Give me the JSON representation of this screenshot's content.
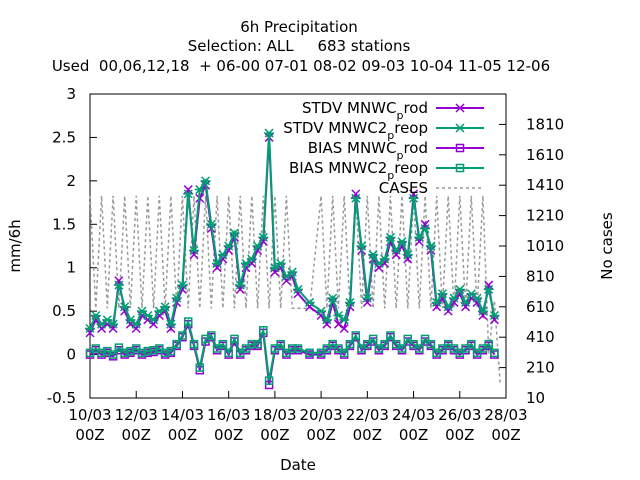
{
  "chart_data": {
    "type": "line",
    "title_lines": [
      "6h Precipitation",
      "Selection: ALL     683 stations",
      "Used  00,06,12,18  + 06-00 07-01 08-02 09-03 10-04 11-05 12-06"
    ],
    "xlabel": "Date",
    "ylabel": "mm/6h",
    "y2label": "No cases",
    "ylim": [
      -0.5,
      3
    ],
    "y2lim": [
      10,
      2010
    ],
    "yticks": [
      "-0.5",
      "0",
      "0.5",
      "1",
      "1.5",
      "2",
      "2.5",
      "3"
    ],
    "y2ticks": [
      "10",
      "210",
      "410",
      "610",
      "810",
      "1010",
      "1210",
      "1410",
      "1610",
      "1810"
    ],
    "xticks": [
      {
        "date": "10/03",
        "hour": "00Z"
      },
      {
        "date": "12/03",
        "hour": "00Z"
      },
      {
        "date": "14/03",
        "hour": "00Z"
      },
      {
        "date": "16/03",
        "hour": "00Z"
      },
      {
        "date": "18/03",
        "hour": "00Z"
      },
      {
        "date": "20/03",
        "hour": "00Z"
      },
      {
        "date": "22/03",
        "hour": "00Z"
      },
      {
        "date": "24/03",
        "hour": "00Z"
      },
      {
        "date": "26/03",
        "hour": "00Z"
      },
      {
        "date": "28/03",
        "hour": "00Z"
      }
    ],
    "x_unit": "days from 10/03 00Z",
    "xlim": [
      0,
      18
    ],
    "legend": [
      {
        "base": "STDV MNWC",
        "sub": "p",
        "rest": "rod",
        "color": "#9400d3",
        "marker": "x",
        "series": "stdv_mnwc_prod"
      },
      {
        "base": "STDV MNWC2",
        "sub": "p",
        "rest": "reop",
        "color": "#009e73",
        "marker": "star",
        "series": "stdv_mnwc2_preop"
      },
      {
        "base": "BIAS MNWC",
        "sub": "p",
        "rest": "rod",
        "color": "#9400d3",
        "marker": "square",
        "series": "bias_mnwc_prod"
      },
      {
        "base": "BIAS MNWC2",
        "sub": "p",
        "rest": "reop",
        "color": "#009e73",
        "marker": "square",
        "series": "bias_mnwc2_preop"
      },
      {
        "base": "CASES",
        "sub": "",
        "rest": "",
        "color": "#999999",
        "marker": "dash",
        "series": "cases"
      }
    ],
    "legend_position": "top-right",
    "series": {
      "stdv_mnwc_prod": {
        "x": [
          0,
          0.25,
          0.5,
          0.75,
          1,
          1.25,
          1.5,
          1.75,
          2,
          2.25,
          2.5,
          2.75,
          3,
          3.25,
          3.5,
          3.75,
          4,
          4.25,
          4.5,
          4.75,
          5,
          5.25,
          5.5,
          5.75,
          6,
          6.25,
          6.5,
          6.75,
          7,
          7.25,
          7.5,
          7.75,
          8,
          8.25,
          8.5,
          8.75,
          9,
          9.5,
          10,
          10.25,
          10.5,
          10.75,
          11,
          11.25,
          11.5,
          11.75,
          12,
          12.25,
          12.5,
          12.75,
          13,
          13.25,
          13.5,
          13.75,
          14,
          14.25,
          14.5,
          14.75,
          15,
          15.25,
          15.5,
          15.75,
          16,
          16.25,
          16.5,
          16.75,
          17,
          17.25,
          17.5
        ],
        "y": [
          0.25,
          0.4,
          0.3,
          0.35,
          0.3,
          0.85,
          0.5,
          0.35,
          0.3,
          0.45,
          0.4,
          0.35,
          0.45,
          0.5,
          0.3,
          0.6,
          0.75,
          1.9,
          1.15,
          1.8,
          1.95,
          1.45,
          1.0,
          1.1,
          1.2,
          1.35,
          0.75,
          1.0,
          1.05,
          1.2,
          1.3,
          2.5,
          0.95,
          1.0,
          0.85,
          0.9,
          0.7,
          0.55,
          0.45,
          0.35,
          0.6,
          0.35,
          0.3,
          0.55,
          1.85,
          1.2,
          0.6,
          1.1,
          1.0,
          1.05,
          1.3,
          1.15,
          1.25,
          1.1,
          1.85,
          1.3,
          1.5,
          1.2,
          0.55,
          0.65,
          0.5,
          0.6,
          0.7,
          0.55,
          0.65,
          0.6,
          0.45,
          0.8,
          0.4
        ]
      },
      "stdv_mnwc2_preop": {
        "x": [
          0,
          0.25,
          0.5,
          0.75,
          1,
          1.25,
          1.5,
          1.75,
          2,
          2.25,
          2.5,
          2.75,
          3,
          3.25,
          3.5,
          3.75,
          4,
          4.25,
          4.5,
          4.75,
          5,
          5.25,
          5.5,
          5.75,
          6,
          6.25,
          6.5,
          6.75,
          7,
          7.25,
          7.5,
          7.75,
          8,
          8.25,
          8.5,
          8.75,
          9,
          9.5,
          10,
          10.25,
          10.5,
          10.75,
          11,
          11.25,
          11.5,
          11.75,
          12,
          12.25,
          12.5,
          12.75,
          13,
          13.25,
          13.5,
          13.75,
          14,
          14.25,
          14.5,
          14.75,
          15,
          15.25,
          15.5,
          15.75,
          16,
          16.25,
          16.5,
          16.75,
          17,
          17.25,
          17.5
        ],
        "y": [
          0.3,
          0.45,
          0.35,
          0.4,
          0.35,
          0.8,
          0.55,
          0.4,
          0.35,
          0.5,
          0.45,
          0.4,
          0.5,
          0.55,
          0.35,
          0.65,
          0.8,
          1.85,
          1.2,
          1.9,
          2.0,
          1.5,
          1.05,
          1.15,
          1.25,
          1.4,
          0.8,
          1.05,
          1.1,
          1.25,
          1.35,
          2.55,
          1.0,
          1.05,
          0.9,
          0.95,
          0.75,
          0.6,
          0.5,
          0.4,
          0.65,
          0.45,
          0.4,
          0.6,
          1.8,
          1.25,
          0.65,
          1.15,
          1.05,
          1.1,
          1.35,
          1.2,
          1.3,
          1.15,
          1.8,
          1.35,
          1.45,
          1.25,
          0.6,
          0.7,
          0.55,
          0.65,
          0.75,
          0.6,
          0.7,
          0.65,
          0.5,
          0.75,
          0.45
        ]
      },
      "bias_mnwc_prod": {
        "x": [
          0,
          0.25,
          0.5,
          0.75,
          1,
          1.25,
          1.5,
          1.75,
          2,
          2.25,
          2.5,
          2.75,
          3,
          3.25,
          3.5,
          3.75,
          4,
          4.25,
          4.5,
          4.75,
          5,
          5.25,
          5.5,
          5.75,
          6,
          6.25,
          6.5,
          6.75,
          7,
          7.25,
          7.5,
          7.75,
          8,
          8.25,
          8.5,
          8.75,
          9,
          9.5,
          10,
          10.25,
          10.5,
          10.75,
          11,
          11.25,
          11.5,
          11.75,
          12,
          12.25,
          12.5,
          12.75,
          13,
          13.25,
          13.5,
          13.75,
          14,
          14.25,
          14.5,
          14.75,
          15,
          15.25,
          15.5,
          15.75,
          16,
          16.25,
          16.5,
          16.75,
          17,
          17.25,
          17.5
        ],
        "y": [
          0.0,
          0.05,
          0.0,
          0.02,
          -0.02,
          0.05,
          0.0,
          0.02,
          0.05,
          0.0,
          0.02,
          0.03,
          0.05,
          0.0,
          0.02,
          0.1,
          0.2,
          0.35,
          0.1,
          -0.18,
          0.15,
          0.2,
          0.05,
          0.1,
          0.0,
          0.15,
          0.0,
          0.05,
          0.1,
          0.1,
          0.25,
          -0.35,
          0.05,
          0.1,
          0.0,
          0.05,
          0.05,
          0.0,
          0.0,
          0.05,
          0.1,
          0.05,
          0.0,
          0.1,
          0.2,
          0.05,
          0.1,
          0.15,
          0.05,
          0.1,
          0.2,
          0.1,
          0.05,
          0.15,
          0.1,
          0.05,
          0.15,
          0.1,
          0.0,
          0.05,
          0.1,
          0.05,
          0.0,
          0.05,
          0.1,
          0.0,
          0.05,
          0.1,
          0.0
        ]
      },
      "bias_mnwc2_preop": {
        "x": [
          0,
          0.25,
          0.5,
          0.75,
          1,
          1.25,
          1.5,
          1.75,
          2,
          2.25,
          2.5,
          2.75,
          3,
          3.25,
          3.5,
          3.75,
          4,
          4.25,
          4.5,
          4.75,
          5,
          5.25,
          5.5,
          5.75,
          6,
          6.25,
          6.5,
          6.75,
          7,
          7.25,
          7.5,
          7.75,
          8,
          8.25,
          8.5,
          8.75,
          9,
          9.5,
          10,
          10.25,
          10.5,
          10.75,
          11,
          11.25,
          11.5,
          11.75,
          12,
          12.25,
          12.5,
          12.75,
          13,
          13.25,
          13.5,
          13.75,
          14,
          14.25,
          14.5,
          14.75,
          15,
          15.25,
          15.5,
          15.75,
          16,
          16.25,
          16.5,
          16.75,
          17,
          17.25,
          17.5
        ],
        "y": [
          0.02,
          0.07,
          0.02,
          0.04,
          0.0,
          0.08,
          0.02,
          0.04,
          0.07,
          0.02,
          0.04,
          0.05,
          0.07,
          0.02,
          0.04,
          0.12,
          0.22,
          0.38,
          0.12,
          -0.15,
          0.18,
          0.22,
          0.07,
          0.12,
          0.02,
          0.18,
          0.02,
          0.07,
          0.12,
          0.12,
          0.28,
          -0.3,
          0.07,
          0.12,
          0.02,
          0.07,
          0.07,
          0.02,
          0.02,
          0.07,
          0.12,
          0.07,
          0.02,
          0.12,
          0.22,
          0.07,
          0.12,
          0.18,
          0.07,
          0.12,
          0.22,
          0.12,
          0.07,
          0.18,
          0.12,
          0.07,
          0.18,
          0.12,
          0.02,
          0.07,
          0.12,
          0.07,
          0.02,
          0.07,
          0.12,
          0.02,
          0.07,
          0.12,
          0.02
        ]
      },
      "cases": {
        "x": [
          0,
          0.25,
          0.5,
          0.75,
          1,
          1.25,
          1.5,
          1.75,
          2,
          2.25,
          2.5,
          2.75,
          3,
          3.25,
          3.5,
          3.75,
          4,
          4.25,
          4.5,
          4.75,
          5,
          5.25,
          5.5,
          5.75,
          6,
          6.25,
          6.5,
          6.75,
          7,
          7.25,
          7.5,
          7.75,
          8,
          8.25,
          8.5,
          8.75,
          9,
          9.5,
          10,
          10.25,
          10.5,
          10.75,
          11,
          11.25,
          11.5,
          11.75,
          12,
          12.25,
          12.5,
          12.75,
          13,
          13.25,
          13.5,
          13.75,
          14,
          14.25,
          14.5,
          14.75,
          15,
          15.25,
          15.5,
          15.75,
          16,
          16.25,
          16.5,
          16.75,
          17,
          17.25,
          17.5,
          17.75
        ],
        "y": [
          1340,
          600,
          1340,
          600,
          1340,
          600,
          1340,
          600,
          1340,
          600,
          1340,
          600,
          1340,
          600,
          1340,
          600,
          1340,
          600,
          1340,
          600,
          1340,
          600,
          1340,
          600,
          1340,
          600,
          1340,
          600,
          1340,
          600,
          1340,
          600,
          1340,
          600,
          1340,
          600,
          600,
          600,
          1340,
          600,
          1340,
          600,
          1340,
          600,
          1340,
          600,
          1340,
          600,
          1340,
          600,
          1340,
          600,
          1340,
          600,
          1340,
          600,
          1340,
          600,
          1340,
          600,
          1340,
          600,
          1340,
          600,
          1340,
          600,
          1340,
          300,
          650,
          100
        ]
      }
    }
  }
}
